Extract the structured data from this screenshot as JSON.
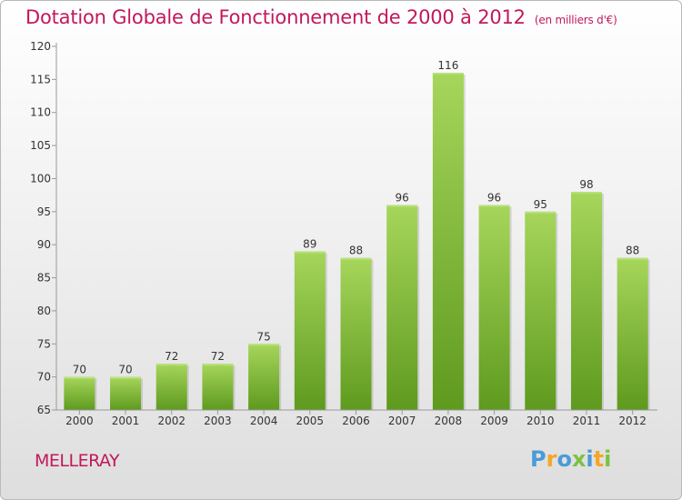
{
  "chart_data": {
    "type": "bar",
    "title": "Dotation Globale de Fonctionnement de 2000 à 2012",
    "subtitle": "(en milliers d'€)",
    "categories": [
      "2000",
      "2001",
      "2002",
      "2003",
      "2004",
      "2005",
      "2006",
      "2007",
      "2008",
      "2009",
      "2010",
      "2011",
      "2012"
    ],
    "values": [
      70,
      70,
      72,
      72,
      75,
      89,
      88,
      96,
      116,
      96,
      95,
      98,
      88
    ],
    "ylim": [
      65,
      120
    ],
    "yticks": [
      65,
      70,
      75,
      80,
      85,
      90,
      95,
      100,
      105,
      110,
      115,
      120
    ],
    "xlabel": "",
    "ylabel": "",
    "grid": false,
    "bar_color": "#7dbb36",
    "bar_color_light": "#a6d65b",
    "bar_color_dark": "#5e9a1e"
  },
  "commune": "MELLERAY",
  "brand": {
    "letters": [
      "P",
      "r",
      "o",
      "x",
      "i",
      "t",
      "i"
    ],
    "colors": [
      "#4a9bd6",
      "#f5a623",
      "#4a9bd6",
      "#7cc242",
      "#4a9bd6",
      "#f5a623",
      "#7cc242"
    ]
  },
  "colors": {
    "accent": "#c2185b",
    "axis": "#999999",
    "text": "#333333"
  }
}
